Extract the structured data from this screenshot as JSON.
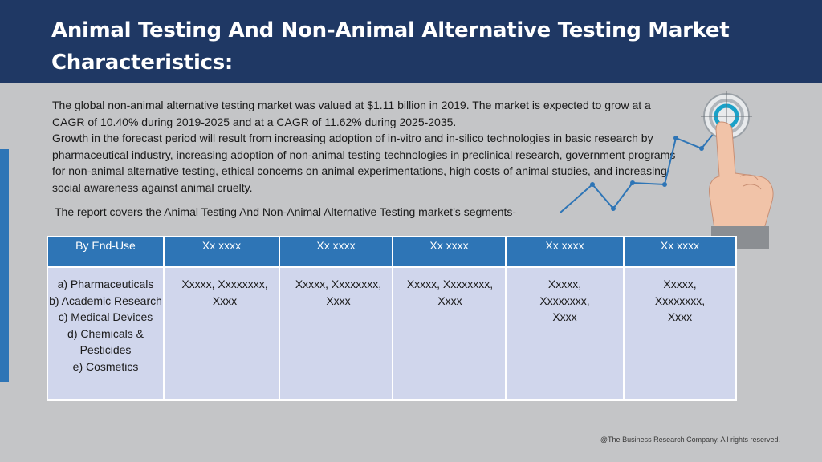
{
  "header": {
    "title": "Animal Testing And Non-Animal Alternative Testing Market Characteristics:"
  },
  "intro": {
    "paragraph_1": "The global non-animal alternative testing market was valued at $1.11 billion in 2019.  The market is expected to grow at a CAGR of 10.40% during 2019-2025 and at a CAGR of 11.62% during 2025-2035.",
    "paragraph_2": "Growth in the forecast period will result from increasing adoption of in-vitro and in-silico technologies in basic research by pharmaceutical industry, increasing adoption of non-animal testing technologies in preclinical research, government programs for non-animal alternative testing, ethical concerns on animal experimentations, high costs of animal studies, and increasing social awareness against animal cruelty."
  },
  "segments_intro": "The report covers the Animal Testing And Non-Animal Alternative Testing market’s segments-",
  "table": {
    "headers": [
      "By End-Use",
      "Xx xxxx",
      "Xx xxxx",
      "Xx xxxx",
      "Xx xxxx",
      "Xx xxxx"
    ],
    "end_use_items": [
      "a) Pharmaceuticals",
      "b) Academic Research",
      "c) Medical Devices",
      "d) Chemicals & Pesticides",
      "e) Cosmetics"
    ],
    "cells": [
      "Xxxxx, Xxxxxxxx, Xxxx",
      "Xxxxx, Xxxxxxxx, Xxxx",
      "Xxxxx, Xxxxxxxx, Xxxx",
      "Xxxxx, Xxxxxxxx, Xxxx",
      "Xxxxx, Xxxxxxxx, Xxxx"
    ]
  },
  "footer": "@The Business Research Company. All rights reserved.",
  "colors": {
    "header_bg": "#1f3864",
    "accent": "#2e75b6",
    "table_body": "#d0d6ec",
    "page_bg": "#c4c5c7"
  },
  "icons": [
    "target-icon",
    "pointing-hand-icon",
    "growth-line-icon"
  ]
}
